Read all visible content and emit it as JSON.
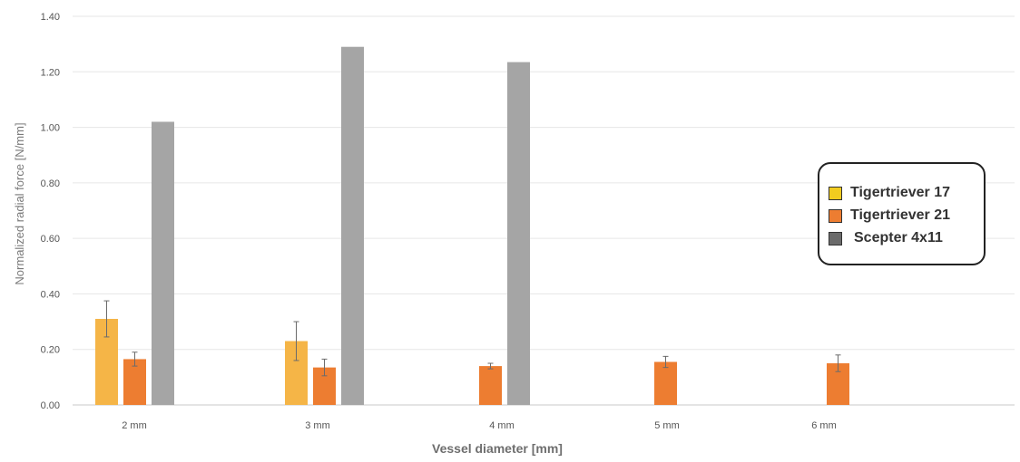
{
  "chart_data": {
    "type": "bar",
    "title": "",
    "xlabel": "Vessel diameter [mm]",
    "ylabel": "Normalized radial force [N/mm]",
    "categories": [
      "2 mm",
      "3 mm",
      "4 mm",
      "5 mm",
      "6 mm"
    ],
    "ylim": [
      0,
      1.4
    ],
    "yticks": [
      "0.00",
      "0.20",
      "0.40",
      "0.60",
      "0.80",
      "1.00",
      "1.20",
      "1.40"
    ],
    "grid": true,
    "legend_position": "right",
    "series": [
      {
        "name": "Tigertriever 17",
        "color": "#f5b547",
        "legend_color": "#f2cc1f",
        "values": [
          0.31,
          0.23,
          null,
          null,
          null
        ],
        "errors": [
          0.065,
          0.07,
          null,
          null,
          null
        ]
      },
      {
        "name": "Tigertriever 21",
        "color": "#ed7d31",
        "legend_color": "#ed7d31",
        "values": [
          0.165,
          0.135,
          0.14,
          0.155,
          0.15
        ],
        "errors": [
          0.025,
          0.03,
          0.01,
          0.02,
          0.03
        ]
      },
      {
        "name": "Scepter 4x11",
        "color": "#a5a5a5",
        "legend_color": "#6b6b6b",
        "values": [
          1.02,
          1.29,
          1.235,
          null,
          null
        ],
        "errors": [
          null,
          null,
          null,
          null,
          null
        ]
      }
    ]
  }
}
